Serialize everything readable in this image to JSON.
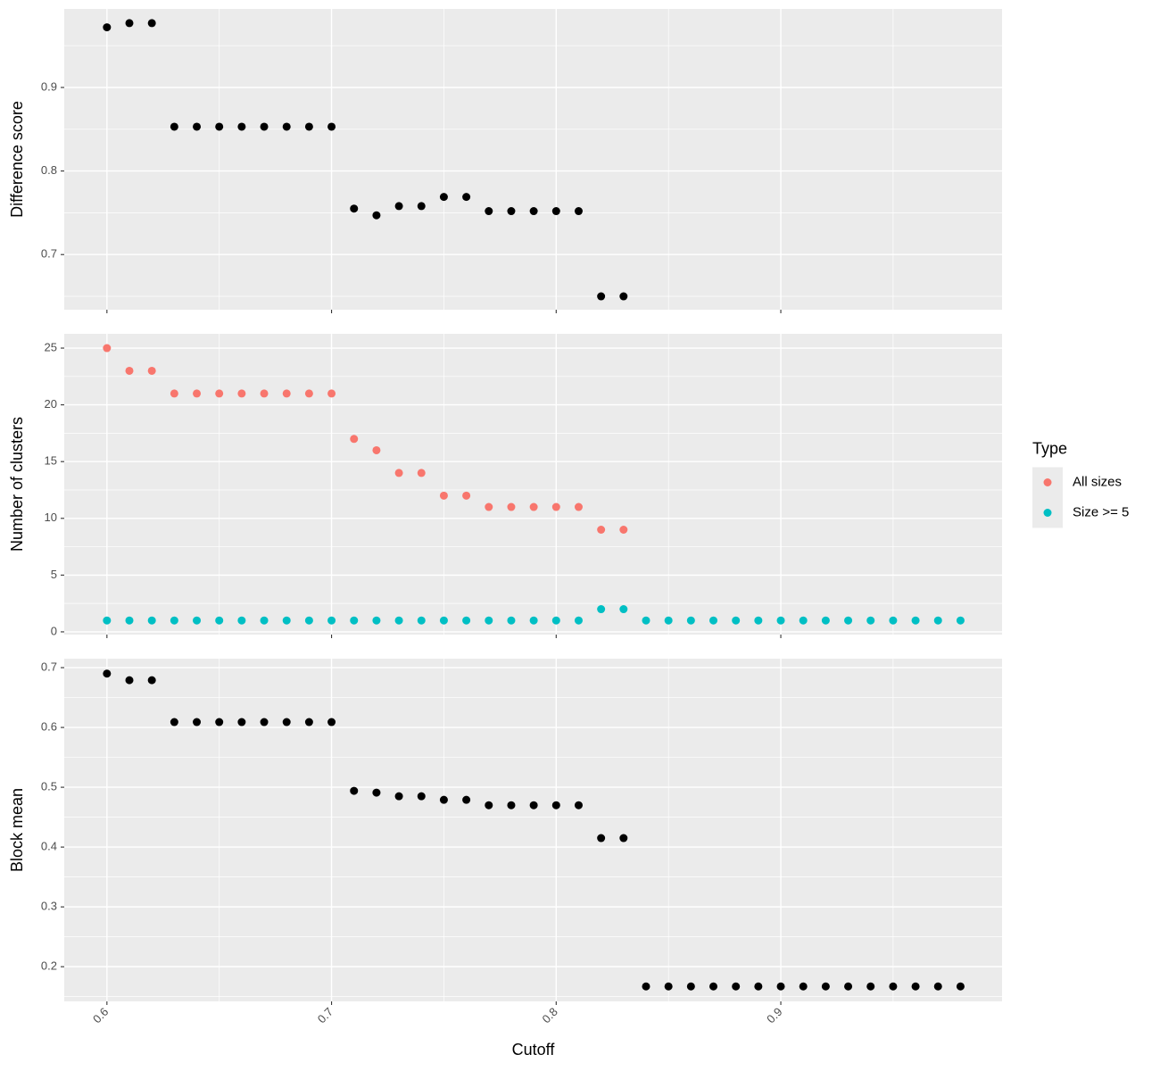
{
  "chart_data": [
    {
      "type": "scatter",
      "ylabel": "Difference score",
      "xlim": [
        0.581,
        0.9985
      ],
      "xticks": [
        0.6,
        0.7,
        0.8,
        0.9
      ],
      "ylim": [
        0.634,
        0.994
      ],
      "yticks": [
        0.7,
        0.8,
        0.9
      ],
      "grid": true,
      "series": [
        {
          "color": "#000000",
          "x": [
            0.6,
            0.61,
            0.62,
            0.63,
            0.64,
            0.65,
            0.66,
            0.67,
            0.68,
            0.69,
            0.7,
            0.71,
            0.72,
            0.73,
            0.74,
            0.75,
            0.76,
            0.77,
            0.78,
            0.79,
            0.8,
            0.81,
            0.82,
            0.83
          ],
          "values": [
            0.972,
            0.977,
            0.977,
            0.853,
            0.853,
            0.853,
            0.853,
            0.853,
            0.853,
            0.853,
            0.853,
            0.755,
            0.747,
            0.758,
            0.758,
            0.769,
            0.769,
            0.752,
            0.752,
            0.752,
            0.752,
            0.752,
            0.65,
            0.65
          ]
        }
      ]
    },
    {
      "type": "scatter",
      "ylabel": "Number of clusters",
      "xlim": [
        0.581,
        0.9985
      ],
      "xticks": [
        0.6,
        0.7,
        0.8,
        0.9
      ],
      "ylim": [
        -0.24,
        26.26
      ],
      "yticks": [
        0,
        5,
        10,
        15,
        20,
        25
      ],
      "grid": true,
      "legend_title": "Type",
      "legend": "right",
      "series": [
        {
          "name": "All sizes",
          "color": "#F8766D",
          "x": [
            0.6,
            0.61,
            0.62,
            0.63,
            0.64,
            0.65,
            0.66,
            0.67,
            0.68,
            0.69,
            0.7,
            0.71,
            0.72,
            0.73,
            0.74,
            0.75,
            0.76,
            0.77,
            0.78,
            0.79,
            0.8,
            0.81,
            0.82,
            0.83
          ],
          "values": [
            25,
            23,
            23,
            21,
            21,
            21,
            21,
            21,
            21,
            21,
            21,
            17,
            16,
            14,
            14,
            12,
            12,
            11,
            11,
            11,
            11,
            11,
            9,
            9
          ]
        },
        {
          "name": "Size >= 5",
          "color": "#00BFC4",
          "x": [
            0.6,
            0.61,
            0.62,
            0.63,
            0.64,
            0.65,
            0.66,
            0.67,
            0.68,
            0.69,
            0.7,
            0.71,
            0.72,
            0.73,
            0.74,
            0.75,
            0.76,
            0.77,
            0.78,
            0.79,
            0.8,
            0.81,
            0.82,
            0.83,
            0.84,
            0.85,
            0.86,
            0.87,
            0.88,
            0.89,
            0.9,
            0.91,
            0.92,
            0.93,
            0.94,
            0.95,
            0.96,
            0.97,
            0.98
          ],
          "values": [
            1,
            1,
            1,
            1,
            1,
            1,
            1,
            1,
            1,
            1,
            1,
            1,
            1,
            1,
            1,
            1,
            1,
            1,
            1,
            1,
            1,
            1,
            2,
            2,
            1,
            1,
            1,
            1,
            1,
            1,
            1,
            1,
            1,
            1,
            1,
            1,
            1,
            1,
            1
          ]
        }
      ]
    },
    {
      "type": "scatter",
      "ylabel": "Block mean",
      "xlabel": "Cutoff",
      "xlim": [
        0.581,
        0.9985
      ],
      "xticks": [
        0.6,
        0.7,
        0.8,
        0.9
      ],
      "ylim": [
        0.142,
        0.715
      ],
      "yticks": [
        0.2,
        0.3,
        0.4,
        0.5,
        0.6,
        0.7
      ],
      "grid": true,
      "series": [
        {
          "color": "#000000",
          "x": [
            0.6,
            0.61,
            0.62,
            0.63,
            0.64,
            0.65,
            0.66,
            0.67,
            0.68,
            0.69,
            0.7,
            0.71,
            0.72,
            0.73,
            0.74,
            0.75,
            0.76,
            0.77,
            0.78,
            0.79,
            0.8,
            0.81,
            0.82,
            0.83,
            0.84,
            0.85,
            0.86,
            0.87,
            0.88,
            0.89,
            0.9,
            0.91,
            0.92,
            0.93,
            0.94,
            0.95,
            0.96,
            0.97,
            0.98
          ],
          "values": [
            0.69,
            0.679,
            0.679,
            0.609,
            0.609,
            0.609,
            0.609,
            0.609,
            0.609,
            0.609,
            0.609,
            0.494,
            0.491,
            0.485,
            0.485,
            0.479,
            0.479,
            0.47,
            0.47,
            0.47,
            0.47,
            0.47,
            0.415,
            0.415,
            0.167,
            0.167,
            0.167,
            0.167,
            0.167,
            0.167,
            0.167,
            0.167,
            0.167,
            0.167,
            0.167,
            0.167,
            0.167,
            0.167,
            0.167
          ]
        }
      ]
    }
  ]
}
